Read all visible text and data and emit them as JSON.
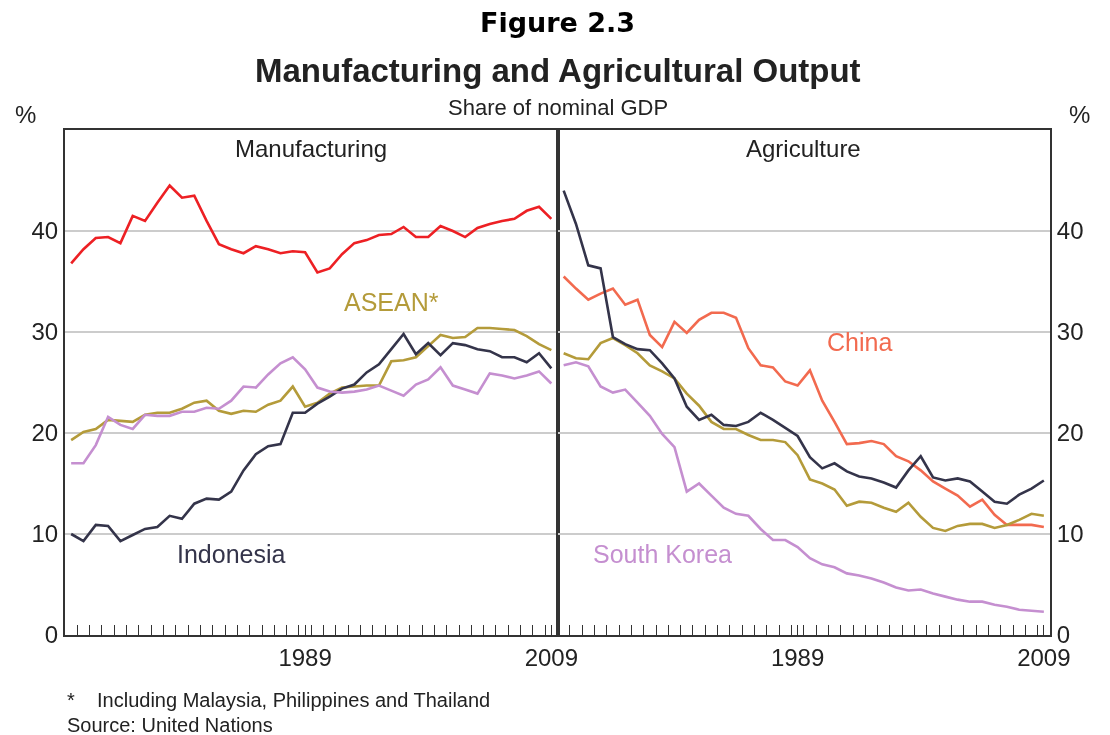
{
  "chart_data": [
    {
      "type": "line",
      "title": "Manufacturing",
      "ylabel": "%",
      "x": [
        1970,
        1971,
        1972,
        1973,
        1974,
        1975,
        1976,
        1977,
        1978,
        1979,
        1980,
        1981,
        1982,
        1983,
        1984,
        1985,
        1986,
        1987,
        1988,
        1989,
        1990,
        1991,
        1992,
        1993,
        1994,
        1995,
        1996,
        1997,
        1998,
        1999,
        2000,
        2001,
        2002,
        2003,
        2004,
        2005,
        2006,
        2007,
        2008,
        2009
      ],
      "xlim": [
        1969.5,
        2009.5
      ],
      "xticks": [
        1989,
        2009
      ],
      "ylim": [
        0,
        50
      ],
      "yticks": [
        0,
        10,
        20,
        30,
        40
      ],
      "grid": "y",
      "series": [
        {
          "color": "#ed2024",
          "values": [
            36.8,
            38.2,
            39.3,
            39.4,
            38.8,
            41.5,
            41.0,
            42.8,
            44.5,
            43.3,
            43.5,
            41.0,
            38.7,
            38.2,
            37.8,
            38.5,
            38.2,
            37.8,
            38.0,
            37.9,
            35.9,
            36.3,
            37.7,
            38.8,
            39.1,
            39.6,
            39.7,
            40.4,
            39.4,
            39.4,
            40.5,
            40.0,
            39.4,
            40.3,
            40.7,
            41.0,
            41.2,
            42.0,
            42.4,
            41.2
          ]
        },
        {
          "name": "ASEAN*",
          "color": "#b49b3a",
          "values": [
            19.3,
            20.1,
            20.4,
            21.3,
            21.2,
            21.1,
            21.8,
            22.0,
            22.0,
            22.4,
            23.0,
            23.2,
            22.2,
            21.9,
            22.2,
            22.1,
            22.8,
            23.2,
            24.6,
            22.6,
            23.0,
            23.9,
            24.5,
            24.6,
            24.7,
            24.7,
            27.1,
            27.2,
            27.5,
            28.6,
            29.7,
            29.4,
            29.5,
            30.4,
            30.4,
            30.3,
            30.2,
            29.6,
            28.8,
            28.2
          ]
        },
        {
          "name": "Indonesia",
          "color": "#34344a",
          "values": [
            10.0,
            9.3,
            10.9,
            10.8,
            9.3,
            9.9,
            10.5,
            10.7,
            11.8,
            11.5,
            13.0,
            13.5,
            13.4,
            14.2,
            16.3,
            17.9,
            18.7,
            18.9,
            22.0,
            22.0,
            22.9,
            23.6,
            24.4,
            24.8,
            26.0,
            26.8,
            28.3,
            29.8,
            27.8,
            28.9,
            27.7,
            28.9,
            28.7,
            28.3,
            28.1,
            27.5,
            27.5,
            27.0,
            27.9,
            26.4
          ]
        },
        {
          "color": "#c58fd0",
          "values": [
            17.0,
            17.0,
            18.8,
            21.6,
            20.8,
            20.4,
            21.8,
            21.7,
            21.7,
            22.1,
            22.1,
            22.5,
            22.4,
            23.2,
            24.6,
            24.5,
            25.8,
            26.9,
            27.5,
            26.3,
            24.5,
            24.1,
            24.0,
            24.1,
            24.3,
            24.7,
            24.2,
            23.7,
            24.8,
            25.3,
            26.5,
            24.7,
            24.3,
            23.9,
            25.9,
            25.7,
            25.4,
            25.7,
            26.1,
            24.9
          ]
        }
      ],
      "annotations": [
        "Figure 2.3",
        "Manufacturing and Agricultural Output",
        "Share of nominal GDP",
        "*    Including Malaysia, Philippines and Thailand",
        "Source: United Nations"
      ]
    },
    {
      "type": "line",
      "title": "Agriculture",
      "ylabel": "%",
      "x": [
        1970,
        1971,
        1972,
        1973,
        1974,
        1975,
        1976,
        1977,
        1978,
        1979,
        1980,
        1981,
        1982,
        1983,
        1984,
        1985,
        1986,
        1987,
        1988,
        1989,
        1990,
        1991,
        1992,
        1993,
        1994,
        1995,
        1996,
        1997,
        1998,
        1999,
        2000,
        2001,
        2002,
        2003,
        2004,
        2005,
        2006,
        2007,
        2008,
        2009
      ],
      "xlim": [
        1969.5,
        2009.5
      ],
      "xticks": [
        1989,
        2009
      ],
      "ylim": [
        0,
        50
      ],
      "yticks": [
        0,
        10,
        20,
        30,
        40
      ],
      "grid": "y",
      "series": [
        {
          "name": "China",
          "color": "#f26a4f",
          "values": [
            35.5,
            34.3,
            33.2,
            33.8,
            34.3,
            32.7,
            33.2,
            29.7,
            28.5,
            31.0,
            29.9,
            31.2,
            31.9,
            31.9,
            31.4,
            28.4,
            26.7,
            26.5,
            25.1,
            24.7,
            26.2,
            23.2,
            21.1,
            18.9,
            19.0,
            19.2,
            18.9,
            17.7,
            17.2,
            16.3,
            15.2,
            14.5,
            13.8,
            12.7,
            13.4,
            11.9,
            10.9,
            10.9,
            10.9,
            10.7
          ]
        },
        {
          "color": "#b49b3a",
          "values": [
            27.9,
            27.4,
            27.3,
            28.9,
            29.4,
            28.7,
            27.9,
            26.7,
            26.1,
            25.4,
            23.9,
            22.7,
            21.1,
            20.4,
            20.4,
            19.8,
            19.3,
            19.3,
            19.1,
            17.8,
            15.4,
            15.0,
            14.4,
            12.8,
            13.2,
            13.1,
            12.6,
            12.2,
            13.1,
            11.7,
            10.6,
            10.3,
            10.8,
            11.0,
            11.0,
            10.6,
            10.9,
            11.4,
            12.0,
            11.8
          ]
        },
        {
          "color": "#34344a",
          "values": [
            44.0,
            40.7,
            36.6,
            36.3,
            29.5,
            28.8,
            28.3,
            28.2,
            26.9,
            25.4,
            22.6,
            21.3,
            21.8,
            20.8,
            20.7,
            21.1,
            22.0,
            21.3,
            20.5,
            19.7,
            17.6,
            16.5,
            17.0,
            16.2,
            15.7,
            15.5,
            15.1,
            14.6,
            16.3,
            17.7,
            15.6,
            15.3,
            15.5,
            15.2,
            14.2,
            13.2,
            13.0,
            13.9,
            14.5,
            15.3
          ]
        },
        {
          "name": "South Korea",
          "color": "#c58fd0",
          "values": [
            26.7,
            27.0,
            26.6,
            24.6,
            24.0,
            24.3,
            23.0,
            21.7,
            19.9,
            18.6,
            14.2,
            15.0,
            13.8,
            12.6,
            12.0,
            11.8,
            10.5,
            9.4,
            9.4,
            8.7,
            7.6,
            7.0,
            6.7,
            6.1,
            5.9,
            5.6,
            5.2,
            4.7,
            4.4,
            4.5,
            4.1,
            3.8,
            3.5,
            3.3,
            3.3,
            3.0,
            2.8,
            2.5,
            2.4,
            2.3
          ]
        }
      ]
    }
  ]
}
